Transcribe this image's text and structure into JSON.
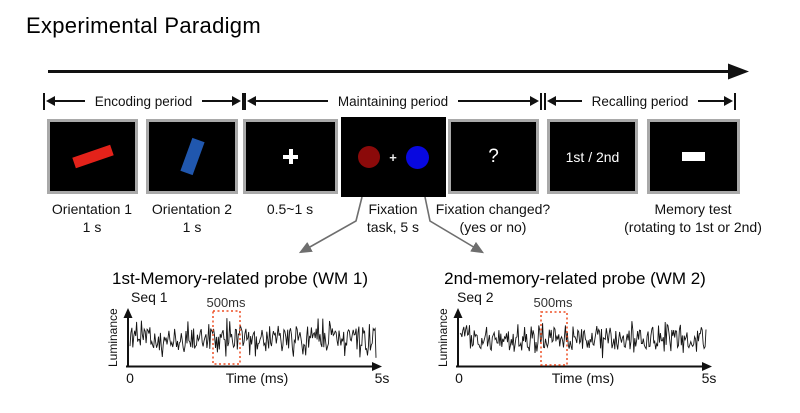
{
  "title": "Experimental Paradigm",
  "timeline": {
    "periods": [
      "Encoding period",
      "Maintaining period",
      "Recalling period"
    ]
  },
  "screens": {
    "orientation1": {
      "caption": "Orientation 1\n1 s"
    },
    "orientation2": {
      "caption": "Orientation 2\n1 s"
    },
    "fixation": {
      "caption": "0.5~1 s"
    },
    "fixation_task": {
      "caption": "Fixation\ntask, 5 s",
      "plus": "+"
    },
    "fixation_changed": {
      "caption": "Fixation changed?\n(yes or no)",
      "glyph": "?"
    },
    "cue": {
      "text": "1st / 2nd"
    },
    "memory_test": {
      "caption": "Memory test\n(rotating to 1st or 2nd)"
    }
  },
  "plots": [
    {
      "title": "1st-Memory-related probe (WM 1)",
      "seq": "Seq 1",
      "highlight_label": "500ms",
      "ylabel": "Luminance",
      "xlabel": "Time (ms)",
      "x_start": "0",
      "x_end": "5s",
      "highlight_duration_ms": 500,
      "duration_s": 5,
      "noise_seed": 20531
    },
    {
      "title": "2nd-memory-related probe (WM 2)",
      "seq": "Seq 2",
      "highlight_label": "500ms",
      "ylabel": "Luminance",
      "xlabel": "Time (ms)",
      "x_start": "0",
      "x_end": "5s",
      "highlight_duration_ms": 500,
      "duration_s": 5,
      "noise_seed": 99173
    }
  ],
  "colors": {
    "bar_red": "#e3221a",
    "bar_blue": "#2057ae",
    "disc_red": "#8b0a0a",
    "disc_blue": "#0808e0",
    "highlight": "#ee4e23",
    "screen_border": "#a9a9a9",
    "connector_gray": "#6e6e6e",
    "ink": "#111111"
  }
}
